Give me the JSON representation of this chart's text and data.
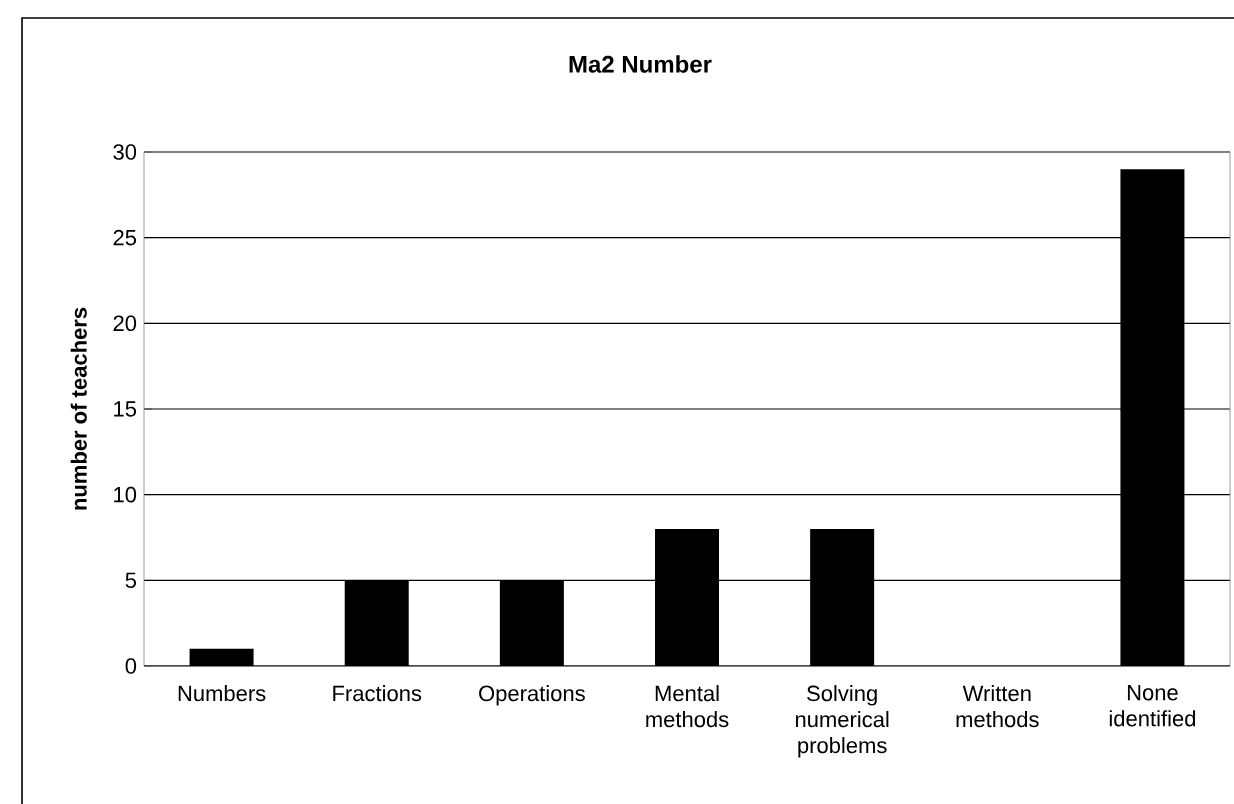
{
  "chart_data": {
    "type": "bar",
    "title": "Ma2 Number",
    "ylabel": "number of teachers",
    "categories": [
      "Numbers",
      "Fractions",
      "Operations",
      "Mental methods",
      "Solving numerical problems",
      "Written methods",
      "None identified"
    ],
    "values": [
      1,
      5,
      5,
      8,
      8,
      0,
      29
    ],
    "color": "#000000",
    "ylim": [
      0,
      30
    ],
    "yticks": [
      0,
      5,
      10,
      15,
      20,
      25,
      30
    ],
    "grid": "y"
  }
}
